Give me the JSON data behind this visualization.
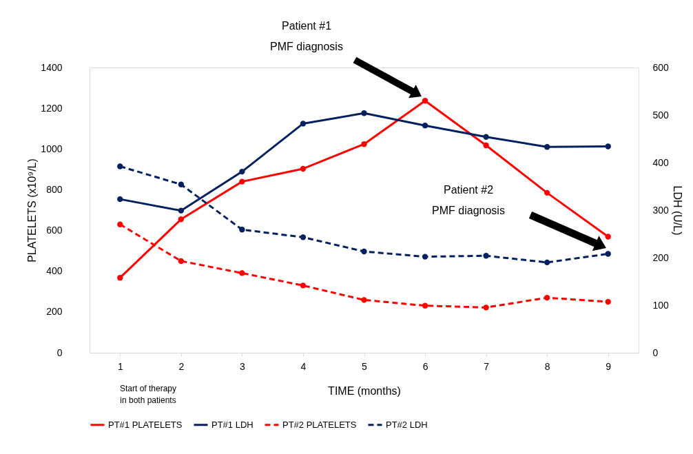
{
  "chart_data": {
    "type": "line",
    "categories": [
      "1",
      "2",
      "3",
      "4",
      "5",
      "6",
      "7",
      "8",
      "9"
    ],
    "series": [
      {
        "name": "PT#1 PLATELETS",
        "color": "#ff0000",
        "line_style": "solid",
        "values": [
          368,
          655,
          840,
          903,
          1024,
          1237,
          1018,
          785,
          570
        ]
      },
      {
        "name": "PT#1 LDH",
        "color": "#002060",
        "line_style": "solid",
        "axis": "y2",
        "values": [
          323,
          299,
          381,
          482,
          504,
          478,
          454,
          433,
          434
        ]
      },
      {
        "name": "PT#2 PLATELETS",
        "color": "#ff0000",
        "line_style": "dashed",
        "values": [
          630,
          450,
          391,
          330,
          259,
          231,
          222,
          270,
          250
        ]
      },
      {
        "name": "PT#2 LDH",
        "color": "#002060",
        "line_style": "dashed",
        "axis": "y2",
        "values": [
          392,
          354,
          259,
          243,
          213,
          202,
          204,
          190,
          208
        ]
      }
    ],
    "xlabel": "TIME (months)",
    "ylabel": "PLATELETS (x10⁹/L)",
    "y2label": "LDH (U/L)",
    "ylim": [
      0,
      1400
    ],
    "yticks": [
      0,
      200,
      400,
      600,
      800,
      {
        "value": 1000,
        "label": "1000"
      },
      {
        "value": 1200,
        "label": "1200"
      },
      {
        "value": 1400,
        "label": "1400"
      }
    ],
    "y2lim": [
      0,
      600
    ],
    "y2ticks": [
      0,
      100,
      200,
      300,
      400,
      500,
      600
    ],
    "annotations": [
      "Patient #1\nPMF diagnosis",
      "Patient #2\nPMF diagnosis",
      "Start of therapy\nin both patients"
    ],
    "marker": "circle",
    "legend": "bottom",
    "grid": false
  }
}
